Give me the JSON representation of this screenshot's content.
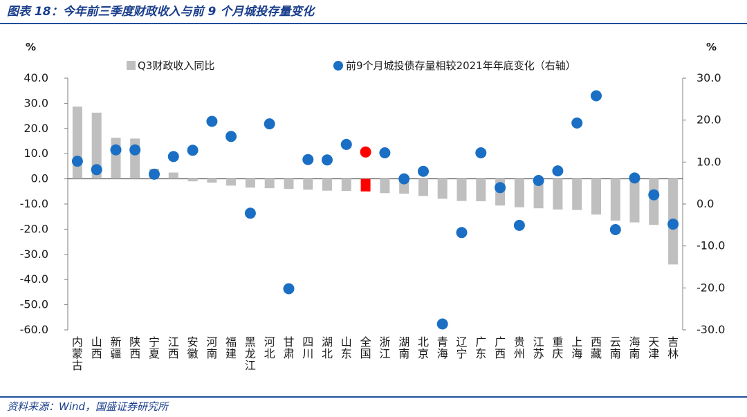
{
  "figure": {
    "title": "图表 18：今年前三季度财政收入与前 9 个月城投存量变化",
    "source": "资料来源：Wind，国盛证券研究所"
  },
  "colors": {
    "bar": "#bfbfbf",
    "bar_highlight": "#ff0000",
    "dot": "#1a6fc4",
    "dot_highlight": "#ff0000",
    "accent": "#1f4e9c"
  },
  "chart_data": {
    "type": "bar",
    "title": "",
    "y_unit_left": "%",
    "y_unit_right": "%",
    "ylim_left": [
      -60,
      40
    ],
    "ylim_right": [
      -30,
      30
    ],
    "yticks_left": [
      "40.0",
      "30.0",
      "20.0",
      "10.0",
      "0.0",
      "-10.0",
      "-20.0",
      "-30.0",
      "-40.0",
      "-50.0",
      "-60.0"
    ],
    "yticks_right": [
      "30.0",
      "20.0",
      "10.0",
      "0.0",
      "-10.0",
      "-20.0",
      "-30.0"
    ],
    "categories": [
      "内蒙古",
      "山西",
      "新疆",
      "陕西",
      "宁夏",
      "江西",
      "安徽",
      "河南",
      "福建",
      "黑龙江",
      "河北",
      "甘肃",
      "四川",
      "湖北",
      "山东",
      "全国",
      "浙江",
      "湖南",
      "北京",
      "青海",
      "辽宁",
      "广东",
      "广西",
      "贵州",
      "江苏",
      "重庆",
      "上海",
      "西藏",
      "云南",
      "海南",
      "天津",
      "吉林"
    ],
    "highlight_category": "全国",
    "series": [
      {
        "name": "Q3财政收入同比",
        "type": "bar",
        "axis": "left",
        "values": [
          28.7,
          26.3,
          16.3,
          16.0,
          4.0,
          2.5,
          -1.0,
          -1.5,
          -2.7,
          -3.5,
          -3.7,
          -4.0,
          -4.3,
          -4.7,
          -4.8,
          -5.0,
          -5.7,
          -5.9,
          -6.8,
          -7.9,
          -8.8,
          -8.9,
          -10.6,
          -11.3,
          -11.7,
          -12.2,
          -12.4,
          -14.2,
          -16.6,
          -17.3,
          -18.3,
          -34.0
        ]
      },
      {
        "name": "前9个月城投债存量相较2021年年底变化（右轴）",
        "type": "scatter",
        "axis": "right",
        "values": [
          10.2,
          8.2,
          12.9,
          12.9,
          7.1,
          11.3,
          12.8,
          19.7,
          16.1,
          -2.2,
          19.1,
          -20.2,
          10.6,
          10.5,
          14.2,
          12.4,
          12.2,
          6.0,
          7.8,
          -28.6,
          -6.8,
          12.2,
          3.9,
          -5.1,
          5.6,
          7.9,
          19.3,
          25.8,
          -6.1,
          6.2,
          2.2,
          -4.8
        ]
      }
    ],
    "legend_position": "top"
  }
}
